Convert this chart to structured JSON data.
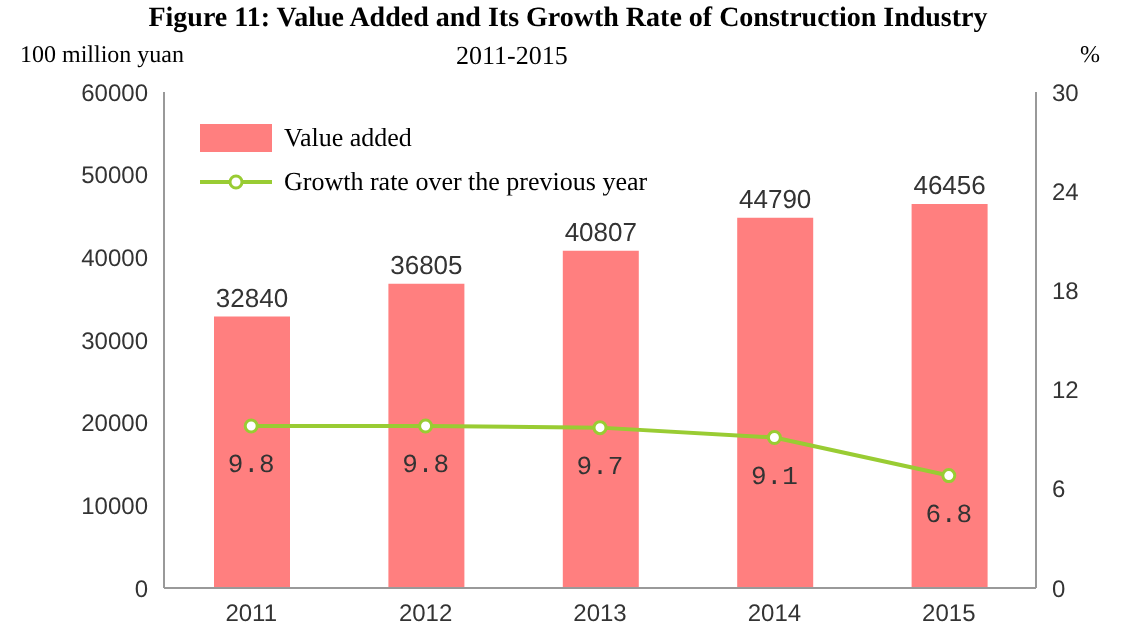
{
  "chart_data": {
    "type": "bar",
    "title": "Figure 11: Value Added and Its Growth Rate of Construction Industry",
    "subtitle": "2011-2015",
    "ylabel": "100 million yuan",
    "y2label": "%",
    "categories": [
      "2011",
      "2012",
      "2013",
      "2014",
      "2015"
    ],
    "series": [
      {
        "name": "Value added",
        "color": "#ff7f7f",
        "values": [
          32840,
          36805,
          40807,
          44790,
          46456
        ]
      },
      {
        "name": "Growth rate over the previous year",
        "type": "line",
        "axis": "y2",
        "color": "#99cc33",
        "values": [
          9.8,
          9.8,
          9.7,
          9.1,
          6.8
        ]
      }
    ],
    "ylim": [
      0,
      60000
    ],
    "yticks": [
      0,
      10000,
      20000,
      30000,
      40000,
      50000,
      60000
    ],
    "y2lim": [
      0,
      30
    ],
    "y2ticks": [
      0,
      6,
      12,
      18,
      24,
      30
    ],
    "data_labels": true,
    "legend": "top left",
    "marker": "circle",
    "grid": false
  }
}
